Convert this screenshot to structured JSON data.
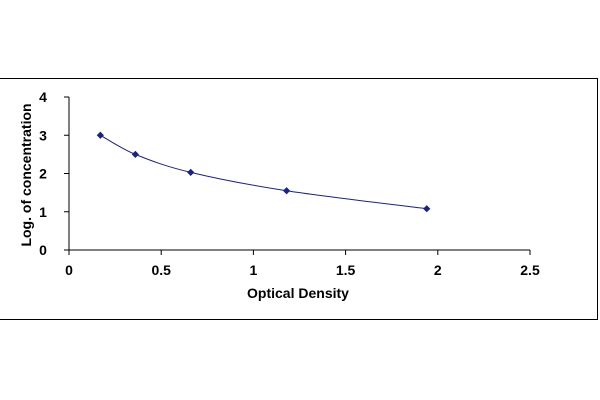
{
  "chart_data": {
    "type": "scatter",
    "title": "",
    "xlabel": "Optical Density",
    "ylabel": "Log. of concentration",
    "xlim": [
      0,
      2.5
    ],
    "ylim": [
      0,
      4
    ],
    "xticks": [
      0,
      0.5,
      1,
      1.5,
      2,
      2.5
    ],
    "xtick_labels": [
      "0",
      "0.5",
      "1",
      "1.5",
      "2",
      "2.5"
    ],
    "yticks": [
      0,
      1,
      2,
      3,
      4
    ],
    "ytick_labels": [
      "0",
      "1",
      "2",
      "3",
      "4"
    ],
    "grid": false,
    "legend": "none",
    "trendline": "smooth curve",
    "series": [
      {
        "points": [
          {
            "x": 0.17,
            "y": 3.0
          },
          {
            "x": 0.36,
            "y": 2.5
          },
          {
            "x": 0.66,
            "y": 2.03
          },
          {
            "x": 1.18,
            "y": 1.55
          },
          {
            "x": 1.94,
            "y": 1.08
          }
        ],
        "marker_color": "#1a237e",
        "line_color": "#1a237e"
      }
    ]
  }
}
